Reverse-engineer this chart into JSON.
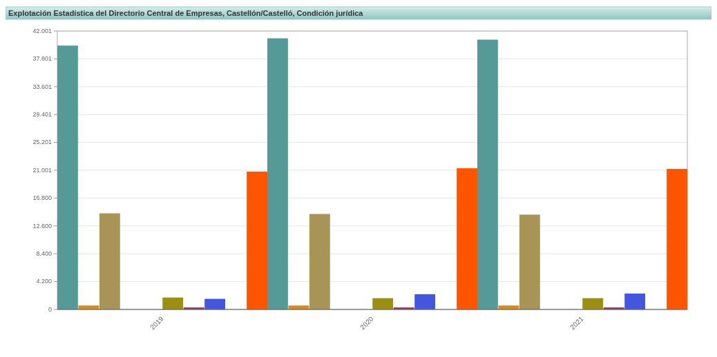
{
  "chart_data": {
    "type": "bar",
    "title": "Explotación Estadística del Directorio Central de Empresas, Castellón/Castelló, Condición jurídica",
    "categories": [
      "2019",
      "2020",
      "2021"
    ],
    "series": [
      {
        "color": "#559a96",
        "values": [
          39800,
          40900,
          40700
        ]
      },
      {
        "color": "#d48c1e",
        "values": [
          600,
          600,
          600
        ]
      },
      {
        "color": "#a89457",
        "values": [
          14500,
          14400,
          14300
        ]
      },
      {
        "values": [
          null,
          null,
          null
        ]
      },
      {
        "values": [
          null,
          null,
          null
        ]
      },
      {
        "color": "#9b8e10",
        "values": [
          1800,
          1700,
          1700
        ]
      },
      {
        "color": "#8b3a62",
        "values": [
          300,
          300,
          300
        ]
      },
      {
        "color": "#4455e0",
        "values": [
          1600,
          2300,
          2400
        ]
      },
      {
        "values": [
          null,
          null,
          null
        ]
      },
      {
        "color": "#ff5500",
        "values": [
          20800,
          21300,
          21200
        ]
      }
    ],
    "ylim": [
      0,
      42001
    ],
    "yticks": [
      0,
      {
        "value": 4200,
        "label": "4.200"
      },
      {
        "value": 8400,
        "label": "8.400"
      },
      {
        "value": 12600,
        "label": "12.600"
      },
      {
        "value": 16800,
        "label": "16.800"
      },
      {
        "value": 21001,
        "label": "21.001"
      },
      {
        "value": 25201,
        "label": "25.201"
      },
      {
        "value": 29401,
        "label": "29.401"
      },
      {
        "value": 33601,
        "label": "33.601"
      },
      {
        "value": 37801,
        "label": "37.801"
      },
      {
        "value": 42001,
        "label": "42.001"
      }
    ],
    "grid": "y"
  }
}
